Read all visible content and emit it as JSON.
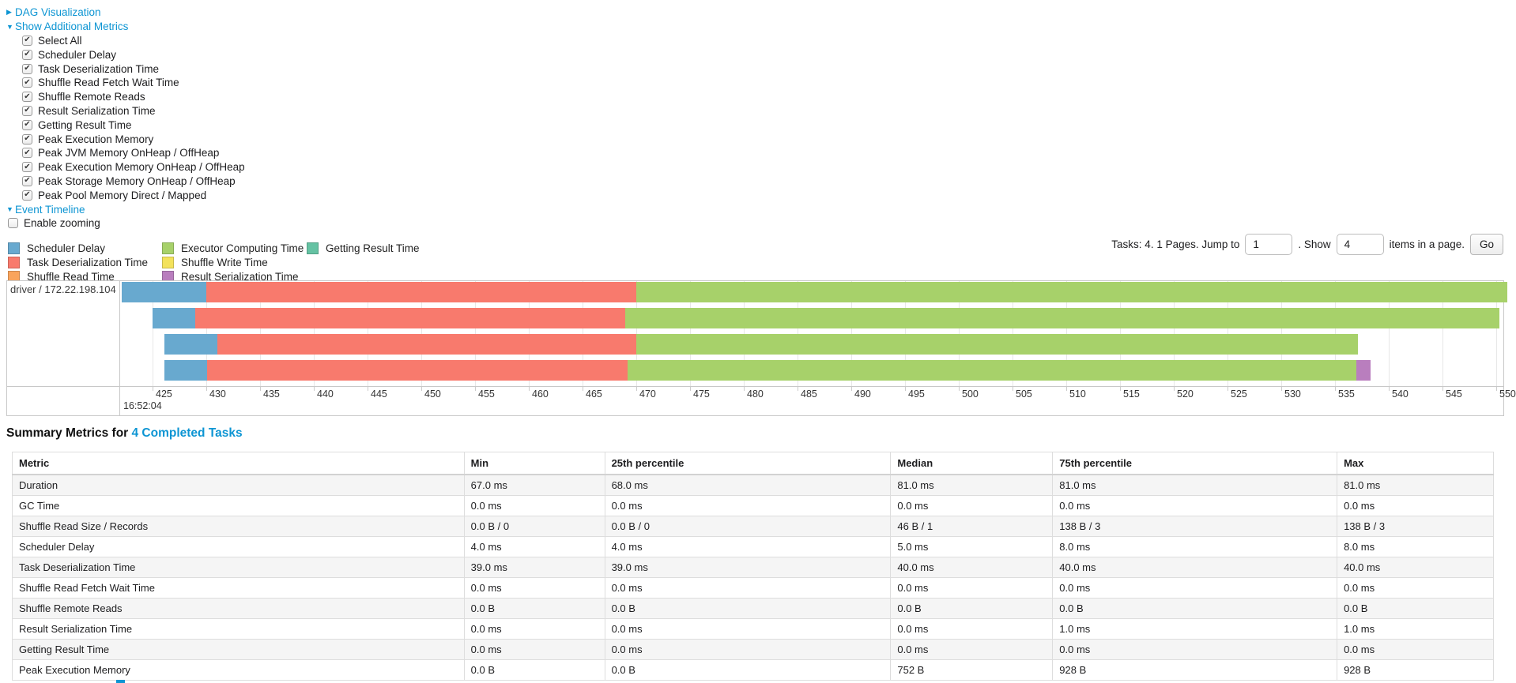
{
  "icons": {
    "collapsed_arrow": "▶",
    "expanded_arrow": "▼",
    "check_mark": "✔"
  },
  "accent_link_color": "#0d95d3",
  "links": {
    "dag_visualization": "DAG Visualization",
    "show_additional_metrics": "Show Additional Metrics",
    "event_timeline": "Event Timeline"
  },
  "metric_checkboxes": [
    "Select All",
    "Scheduler Delay",
    "Task Deserialization Time",
    "Shuffle Read Fetch Wait Time",
    "Shuffle Remote Reads",
    "Result Serialization Time",
    "Getting Result Time",
    "Peak Execution Memory",
    "Peak JVM Memory OnHeap / OffHeap",
    "Peak Execution Memory OnHeap / OffHeap",
    "Peak Storage Memory OnHeap / OffHeap",
    "Peak Pool Memory Direct / Mapped"
  ],
  "enable_zooming_label": "Enable zooming",
  "legend": {
    "columns": [
      [
        {
          "label": "Scheduler Delay",
          "color": "#68A9CF"
        },
        {
          "label": "Task Deserialization Time",
          "color": "#F87A6D"
        },
        {
          "label": "Shuffle Read Time",
          "color": "#F9A45C"
        }
      ],
      [
        {
          "label": "Executor Computing Time",
          "color": "#A7D16A"
        },
        {
          "label": "Shuffle Write Time",
          "color": "#F3E25B"
        },
        {
          "label": "Result Serialization Time",
          "color": "#B97EBE"
        }
      ],
      [
        {
          "label": "Getting Result Time",
          "color": "#65C2A3"
        }
      ]
    ]
  },
  "pagination": {
    "tasks_text": "Tasks: 4. 1 Pages. Jump to",
    "jump_value": "1",
    "show_text": ". Show",
    "show_value": "4",
    "items_text": "items in a page.",
    "go_label": "Go"
  },
  "chart_data": {
    "type": "timeline",
    "group_label": "driver / 172.22.198.104",
    "x_axis": {
      "tick_start": 425,
      "tick_end": 550,
      "tick_step": 5,
      "time_label": "16:52:04",
      "unit": "ms within second 16:52:04"
    },
    "series_colors": {
      "scheduler_delay": "#68A9CF",
      "task_deserialization": "#F87A6D",
      "shuffle_read": "#F9A45C",
      "executor_computing": "#A7D16A",
      "shuffle_write": "#F3E25B",
      "result_serialization": "#B97EBE",
      "getting_result": "#65C2A3"
    },
    "tasks": [
      {
        "start": 422.1,
        "segments": [
          {
            "kind": "scheduler_delay",
            "end": 430.0
          },
          {
            "kind": "task_deserialization",
            "end": 470.0
          },
          {
            "kind": "executor_computing",
            "end": 551.0
          }
        ]
      },
      {
        "start": 425.0,
        "segments": [
          {
            "kind": "scheduler_delay",
            "end": 429.0
          },
          {
            "kind": "task_deserialization",
            "end": 469.0
          },
          {
            "kind": "executor_computing",
            "end": 550.3
          }
        ]
      },
      {
        "start": 426.1,
        "segments": [
          {
            "kind": "scheduler_delay",
            "end": 431.0
          },
          {
            "kind": "task_deserialization",
            "end": 470.0
          },
          {
            "kind": "executor_computing",
            "end": 537.1
          }
        ]
      },
      {
        "start": 426.1,
        "segments": [
          {
            "kind": "scheduler_delay",
            "end": 430.1
          },
          {
            "kind": "task_deserialization",
            "end": 469.2
          },
          {
            "kind": "executor_computing",
            "end": 537.0
          },
          {
            "kind": "result_serialization",
            "end": 538.3
          }
        ]
      }
    ]
  },
  "summary": {
    "heading_prefix": "Summary Metrics for ",
    "heading_link": "4 Completed Tasks",
    "headers": [
      "Metric",
      "Min",
      "25th percentile",
      "Median",
      "75th percentile",
      "Max"
    ],
    "rows": [
      [
        "Duration",
        "67.0 ms",
        "68.0 ms",
        "81.0 ms",
        "81.0 ms",
        "81.0 ms"
      ],
      [
        "GC Time",
        "0.0 ms",
        "0.0 ms",
        "0.0 ms",
        "0.0 ms",
        "0.0 ms"
      ],
      [
        "Shuffle Read Size / Records",
        "0.0 B / 0",
        "0.0 B / 0",
        "46 B / 1",
        "138 B / 3",
        "138 B / 3"
      ],
      [
        "Scheduler Delay",
        "4.0 ms",
        "4.0 ms",
        "5.0 ms",
        "8.0 ms",
        "8.0 ms"
      ],
      [
        "Task Deserialization Time",
        "39.0 ms",
        "39.0 ms",
        "40.0 ms",
        "40.0 ms",
        "40.0 ms"
      ],
      [
        "Shuffle Read Fetch Wait Time",
        "0.0 ms",
        "0.0 ms",
        "0.0 ms",
        "0.0 ms",
        "0.0 ms"
      ],
      [
        "Shuffle Remote Reads",
        "0.0 B",
        "0.0 B",
        "0.0 B",
        "0.0 B",
        "0.0 B"
      ],
      [
        "Result Serialization Time",
        "0.0 ms",
        "0.0 ms",
        "0.0 ms",
        "1.0 ms",
        "1.0 ms"
      ],
      [
        "Getting Result Time",
        "0.0 ms",
        "0.0 ms",
        "0.0 ms",
        "0.0 ms",
        "0.0 ms"
      ],
      [
        "Peak Execution Memory",
        "0.0 B",
        "0.0 B",
        "752 B",
        "928 B",
        "928 B"
      ]
    ]
  }
}
